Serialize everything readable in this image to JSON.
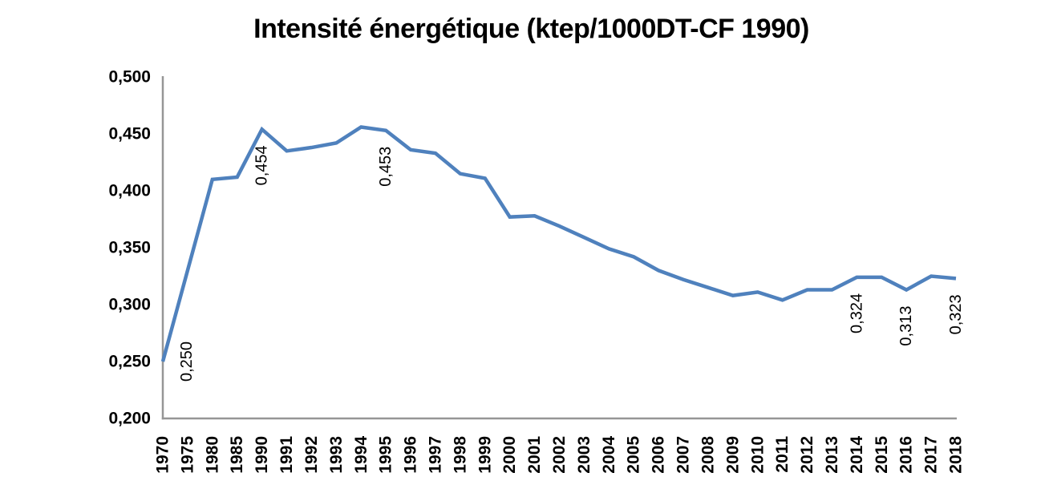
{
  "chart_data": {
    "type": "line",
    "title": "Intensité énergétique (ktep/1000DT-CF 1990)",
    "categories": [
      "1970",
      "1975",
      "1980",
      "1985",
      "1990",
      "1991",
      "1992",
      "1993",
      "1994",
      "1995",
      "1996",
      "1997",
      "1998",
      "1999",
      "2000",
      "2001",
      "2002",
      "2003",
      "2004",
      "2005",
      "2006",
      "2007",
      "2008",
      "2009",
      "2010",
      "2011",
      "2012",
      "2013",
      "2014",
      "2015",
      "2016",
      "2017",
      "2018"
    ],
    "series": [
      {
        "name": "Intensité énergétique (ktep/1000DT-CF 1990)",
        "values": [
          0.25,
          0.33,
          0.41,
          0.412,
          0.454,
          0.435,
          0.438,
          0.442,
          0.456,
          0.453,
          0.436,
          0.433,
          0.415,
          0.411,
          0.377,
          0.378,
          0.369,
          0.359,
          0.349,
          0.342,
          0.33,
          0.322,
          0.315,
          0.308,
          0.311,
          0.304,
          0.313,
          0.313,
          0.324,
          0.324,
          0.313,
          0.325,
          0.323
        ]
      }
    ],
    "data_labels": [
      {
        "category": "1970",
        "text": "0,250"
      },
      {
        "category": "1990",
        "text": "0,454"
      },
      {
        "category": "1995",
        "text": "0,453"
      },
      {
        "category": "2014",
        "text": "0,324"
      },
      {
        "category": "2016",
        "text": "0,313"
      },
      {
        "category": "2018",
        "text": "0,323"
      }
    ],
    "xlabel": "",
    "ylabel": "",
    "ylim": [
      0.2,
      0.5
    ],
    "y_tick_step": 0.05,
    "y_tick_labels": [
      "0,500",
      "0,450",
      "0,400",
      "0,350",
      "0,300",
      "0,250",
      "0,200"
    ],
    "grid": false,
    "legend_position": "none",
    "colors": {
      "line": "#4F81BD",
      "axis": "#969696",
      "text": "#000000",
      "background": "#FFFFFF"
    }
  }
}
